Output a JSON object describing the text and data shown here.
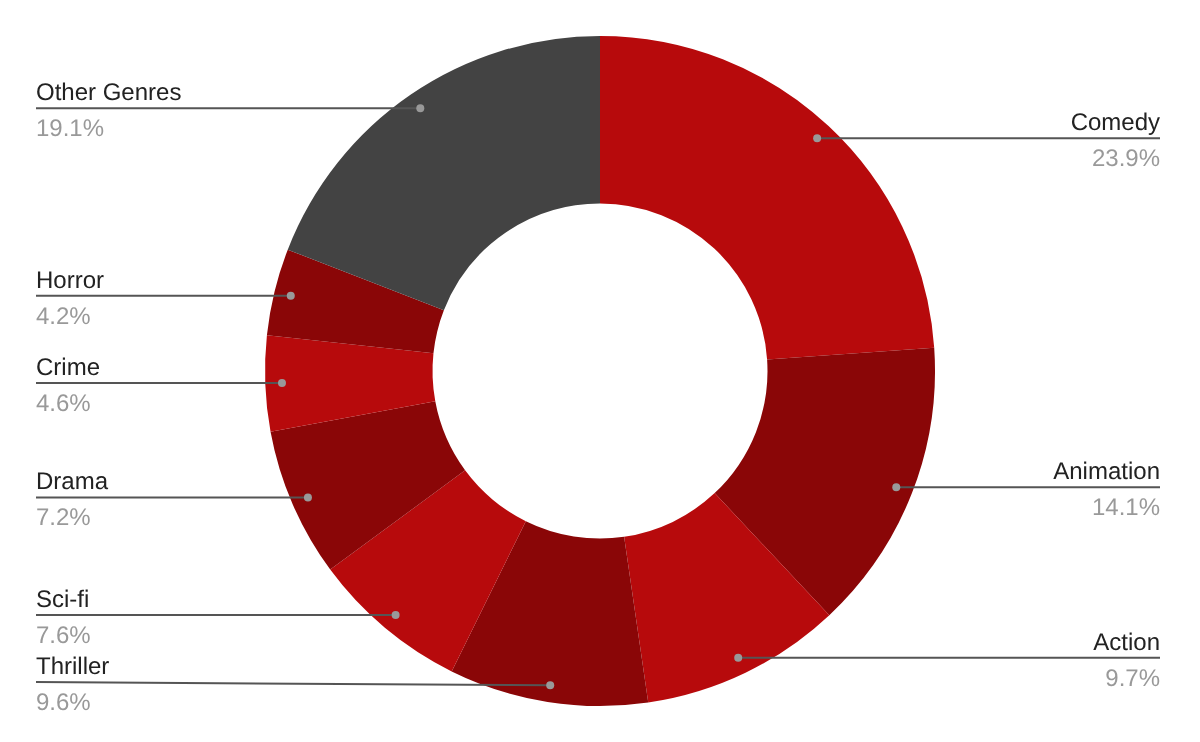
{
  "chart_data": {
    "type": "donut",
    "categories": [
      "Comedy",
      "Animation",
      "Action",
      "Thriller",
      "Sci-fi",
      "Drama",
      "Crime",
      "Horror",
      "Other Genres"
    ],
    "values": [
      23.9,
      14.1,
      9.7,
      9.6,
      7.6,
      7.2,
      4.6,
      4.2,
      19.1
    ],
    "colors": [
      "#b70a0c",
      "#8a0607",
      "#b70a0c",
      "#8a0607",
      "#b70a0c",
      "#8a0607",
      "#b70a0c",
      "#8a0607",
      "#434343"
    ],
    "value_labels": [
      "23.9%",
      "14.1%",
      "9.7%",
      "9.6%",
      "7.6%",
      "7.2%",
      "4.6%",
      "4.2%",
      "19.1%"
    ]
  }
}
